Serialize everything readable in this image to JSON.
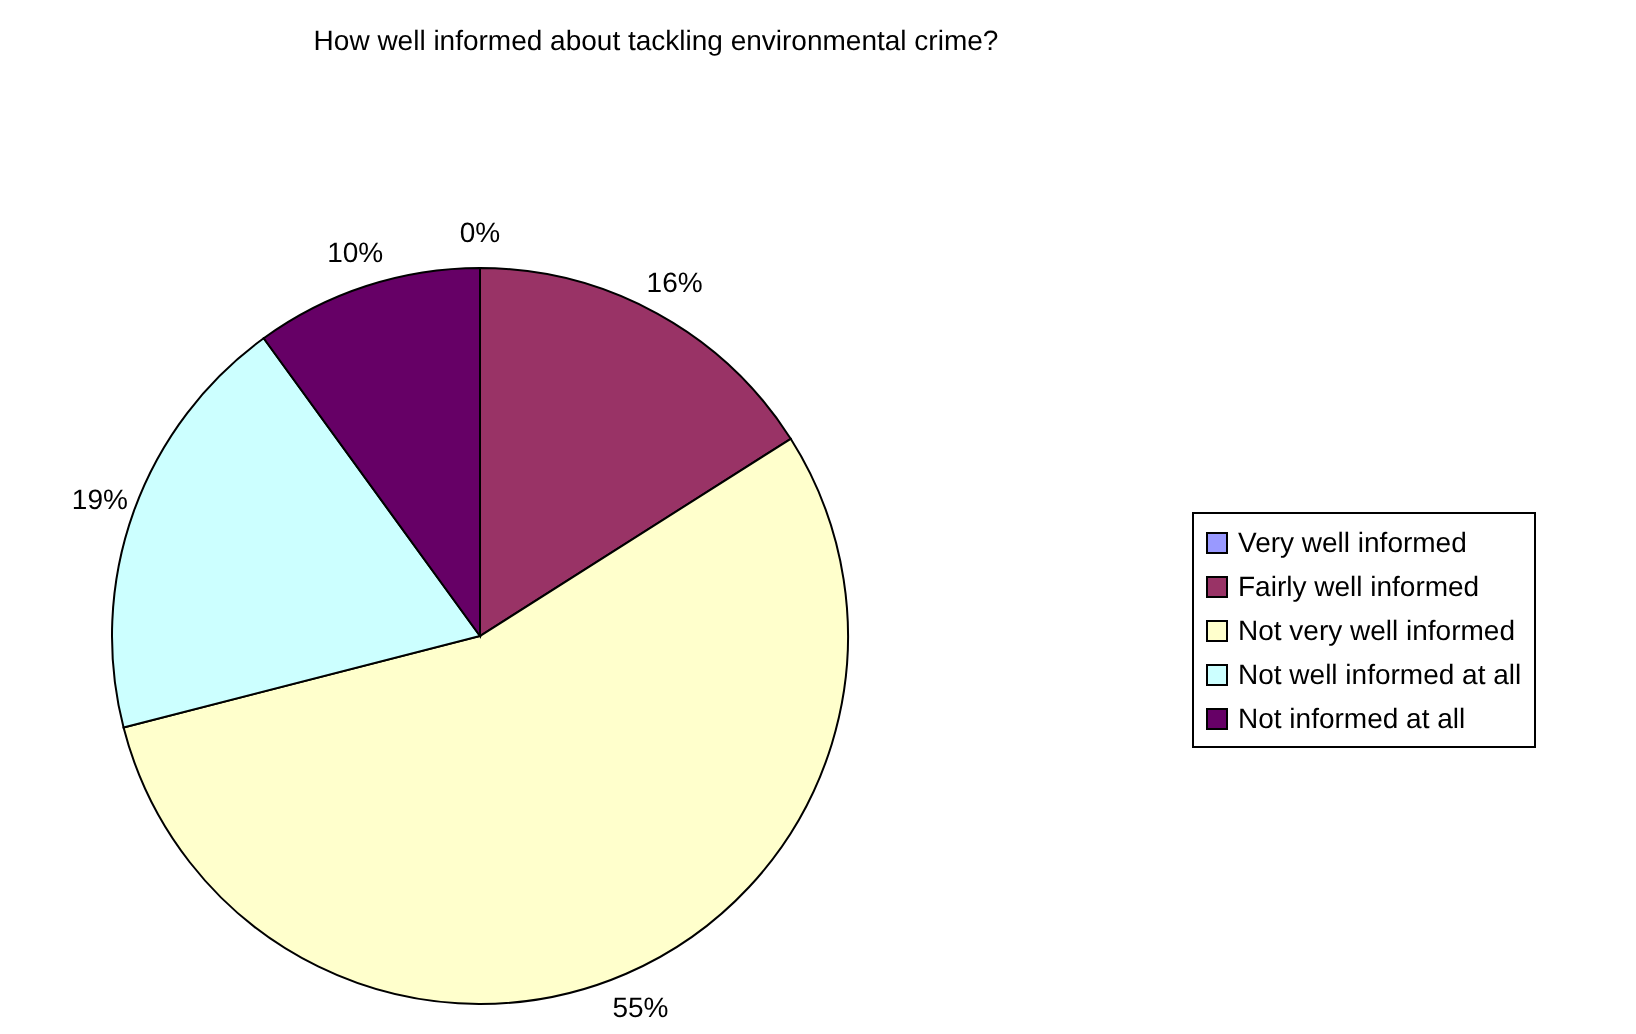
{
  "chart_data": {
    "type": "pie",
    "title": "How well informed about tackling environmental crime?",
    "categories": [
      "Very well informed",
      "Fairly well informed",
      "Not very well informed",
      "Not well informed at all",
      "Not informed at all"
    ],
    "values": [
      0,
      16,
      55,
      19,
      10
    ],
    "colors": [
      "#9999ff",
      "#993366",
      "#ffffcc",
      "#ccffff",
      "#660066"
    ],
    "value_labels": [
      "0%",
      "16%",
      "55%",
      "19%",
      "10%"
    ],
    "legend": "right"
  }
}
